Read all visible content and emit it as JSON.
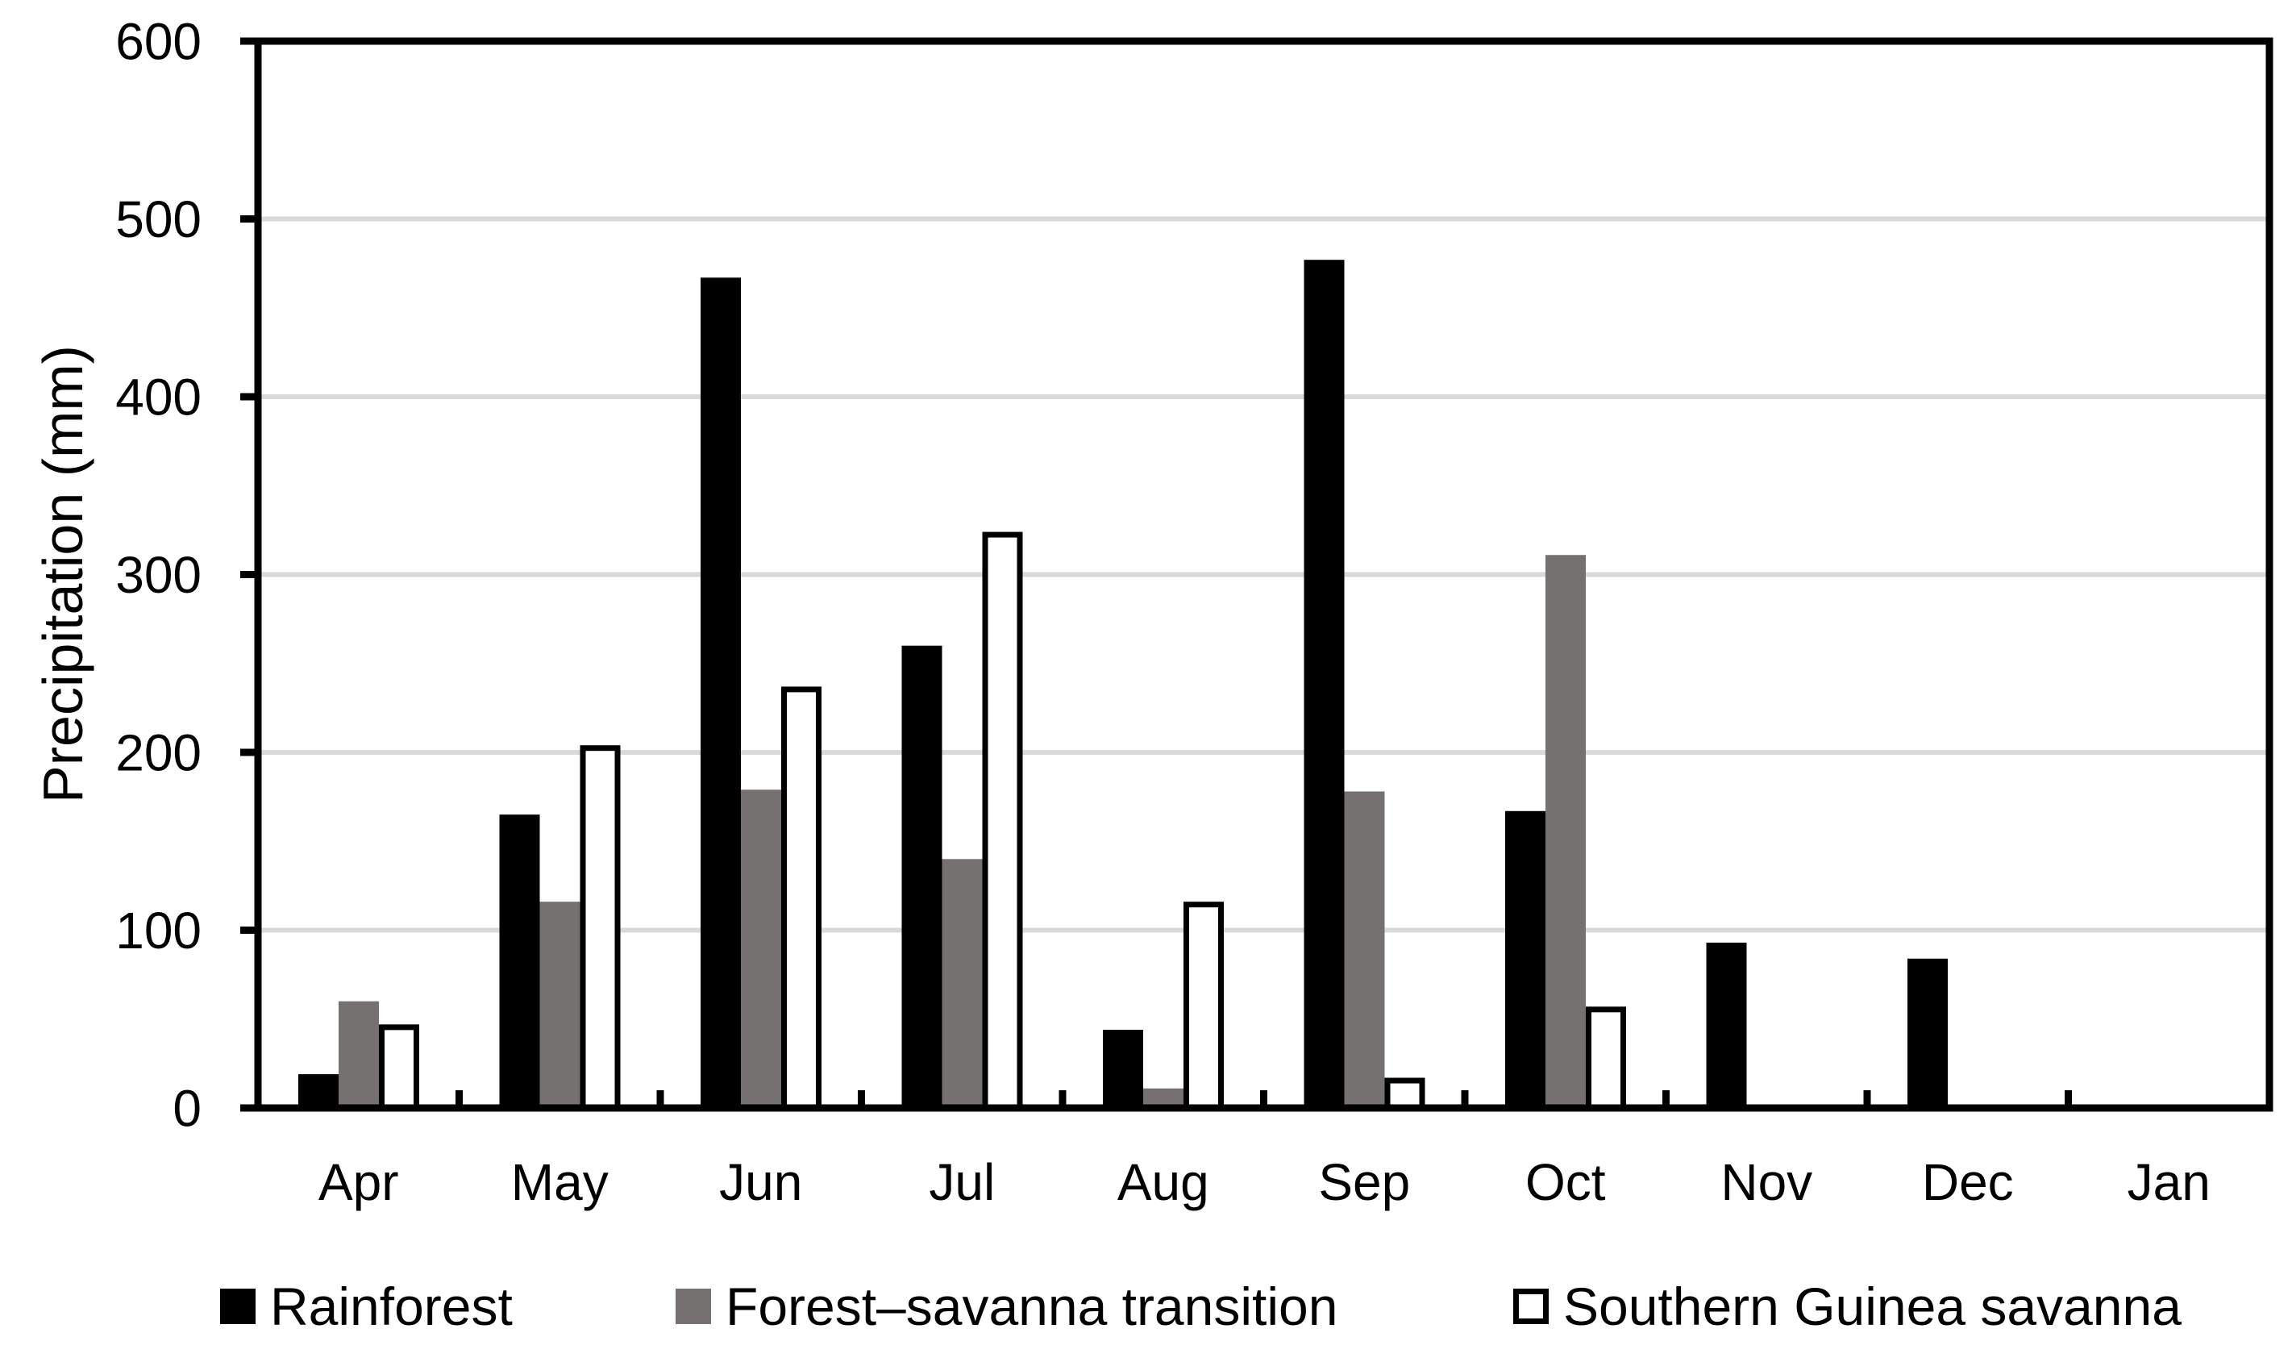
{
  "figure": {
    "background": "#ffffff",
    "text_color": "#000000"
  },
  "chart_data": {
    "type": "bar",
    "title": "",
    "xlabel": "",
    "ylabel": "Precipitation (mm)",
    "categories": [
      "Apr",
      "May",
      "Jun",
      "Jul",
      "Aug",
      "Sep",
      "Oct",
      "Nov",
      "Dec",
      "Jan"
    ],
    "series": [
      {
        "name": "Rainforest",
        "color": "#000000",
        "style": "solid",
        "values": [
          19,
          165,
          467,
          260,
          44,
          477,
          167,
          93,
          84,
          0
        ]
      },
      {
        "name": "Forest–savanna transition",
        "color": "#757171",
        "style": "solid",
        "values": [
          60,
          116,
          179,
          140,
          11,
          178,
          311,
          0,
          0,
          0
        ]
      },
      {
        "name": "Southern Guinea savanna",
        "color": "#ffffff",
        "border": "#000000",
        "style": "outlined",
        "values": [
          47,
          204,
          237,
          324,
          116,
          17,
          57,
          0,
          0,
          0
        ]
      }
    ],
    "ylim": [
      0,
      600
    ],
    "yticks": [
      0,
      100,
      200,
      300,
      400,
      500,
      600
    ],
    "grid": "horizontal",
    "gridline_color": "#d9d9d9",
    "axis_color": "#000000",
    "legend_position": "bottom"
  }
}
